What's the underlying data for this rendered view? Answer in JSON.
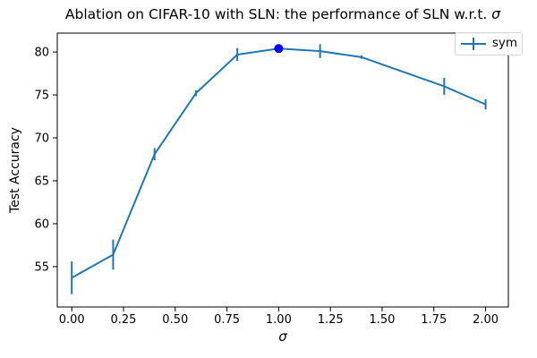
{
  "figure": {
    "title_main": "Ablation on CIFAR-10 with SLN: the performance of SLN w.r.t. ",
    "title_sigma": "σ"
  },
  "axes": {
    "xlabel": "σ",
    "ylabel": "Test Accuracy"
  },
  "legend": {
    "label": "sym"
  },
  "colors": {
    "line": "#1f77b4",
    "best_point": "#0000ff",
    "axis": "#000000",
    "legend_border": "#d5d5d5",
    "background": "#ffffff"
  },
  "chart_data": {
    "type": "line",
    "title": "Ablation on CIFAR-10 with SLN: the performance of SLN w.r.t. σ",
    "xlabel": "σ",
    "ylabel": "Test Accuracy",
    "grid": false,
    "legend_position": "upper right",
    "legend_entries": [
      "sym"
    ],
    "xlim": [
      -0.07,
      2.11
    ],
    "ylim": [
      50.3,
      82.2
    ],
    "xticks": [
      0,
      0.25,
      0.5,
      0.75,
      1.0,
      1.25,
      1.5,
      1.75,
      2.0
    ],
    "xtick_labels": [
      "0.00",
      "0.25",
      "0.50",
      "0.75",
      "1.00",
      "1.25",
      "1.50",
      "1.75",
      "2.00"
    ],
    "yticks": [
      55,
      60,
      65,
      70,
      75,
      80
    ],
    "ytick_labels": [
      "55",
      "60",
      "65",
      "70",
      "75",
      "80"
    ],
    "series": [
      {
        "name": "sym",
        "color": "#1f77b4",
        "x": [
          0.0,
          0.2,
          0.4,
          0.6,
          0.8,
          1.0,
          1.2,
          1.4,
          1.8,
          2.0
        ],
        "y": [
          53.7,
          56.4,
          68.1,
          75.2,
          79.7,
          80.4,
          80.1,
          79.4,
          76.0,
          73.9
        ],
        "yerr": [
          1.9,
          1.75,
          0.7,
          0.35,
          0.75,
          0.3,
          0.8,
          0.2,
          1.0,
          0.6
        ]
      }
    ],
    "highlight_point": {
      "x": 1.0,
      "y": 80.4,
      "color": "#0000ff",
      "radius": 5
    }
  }
}
